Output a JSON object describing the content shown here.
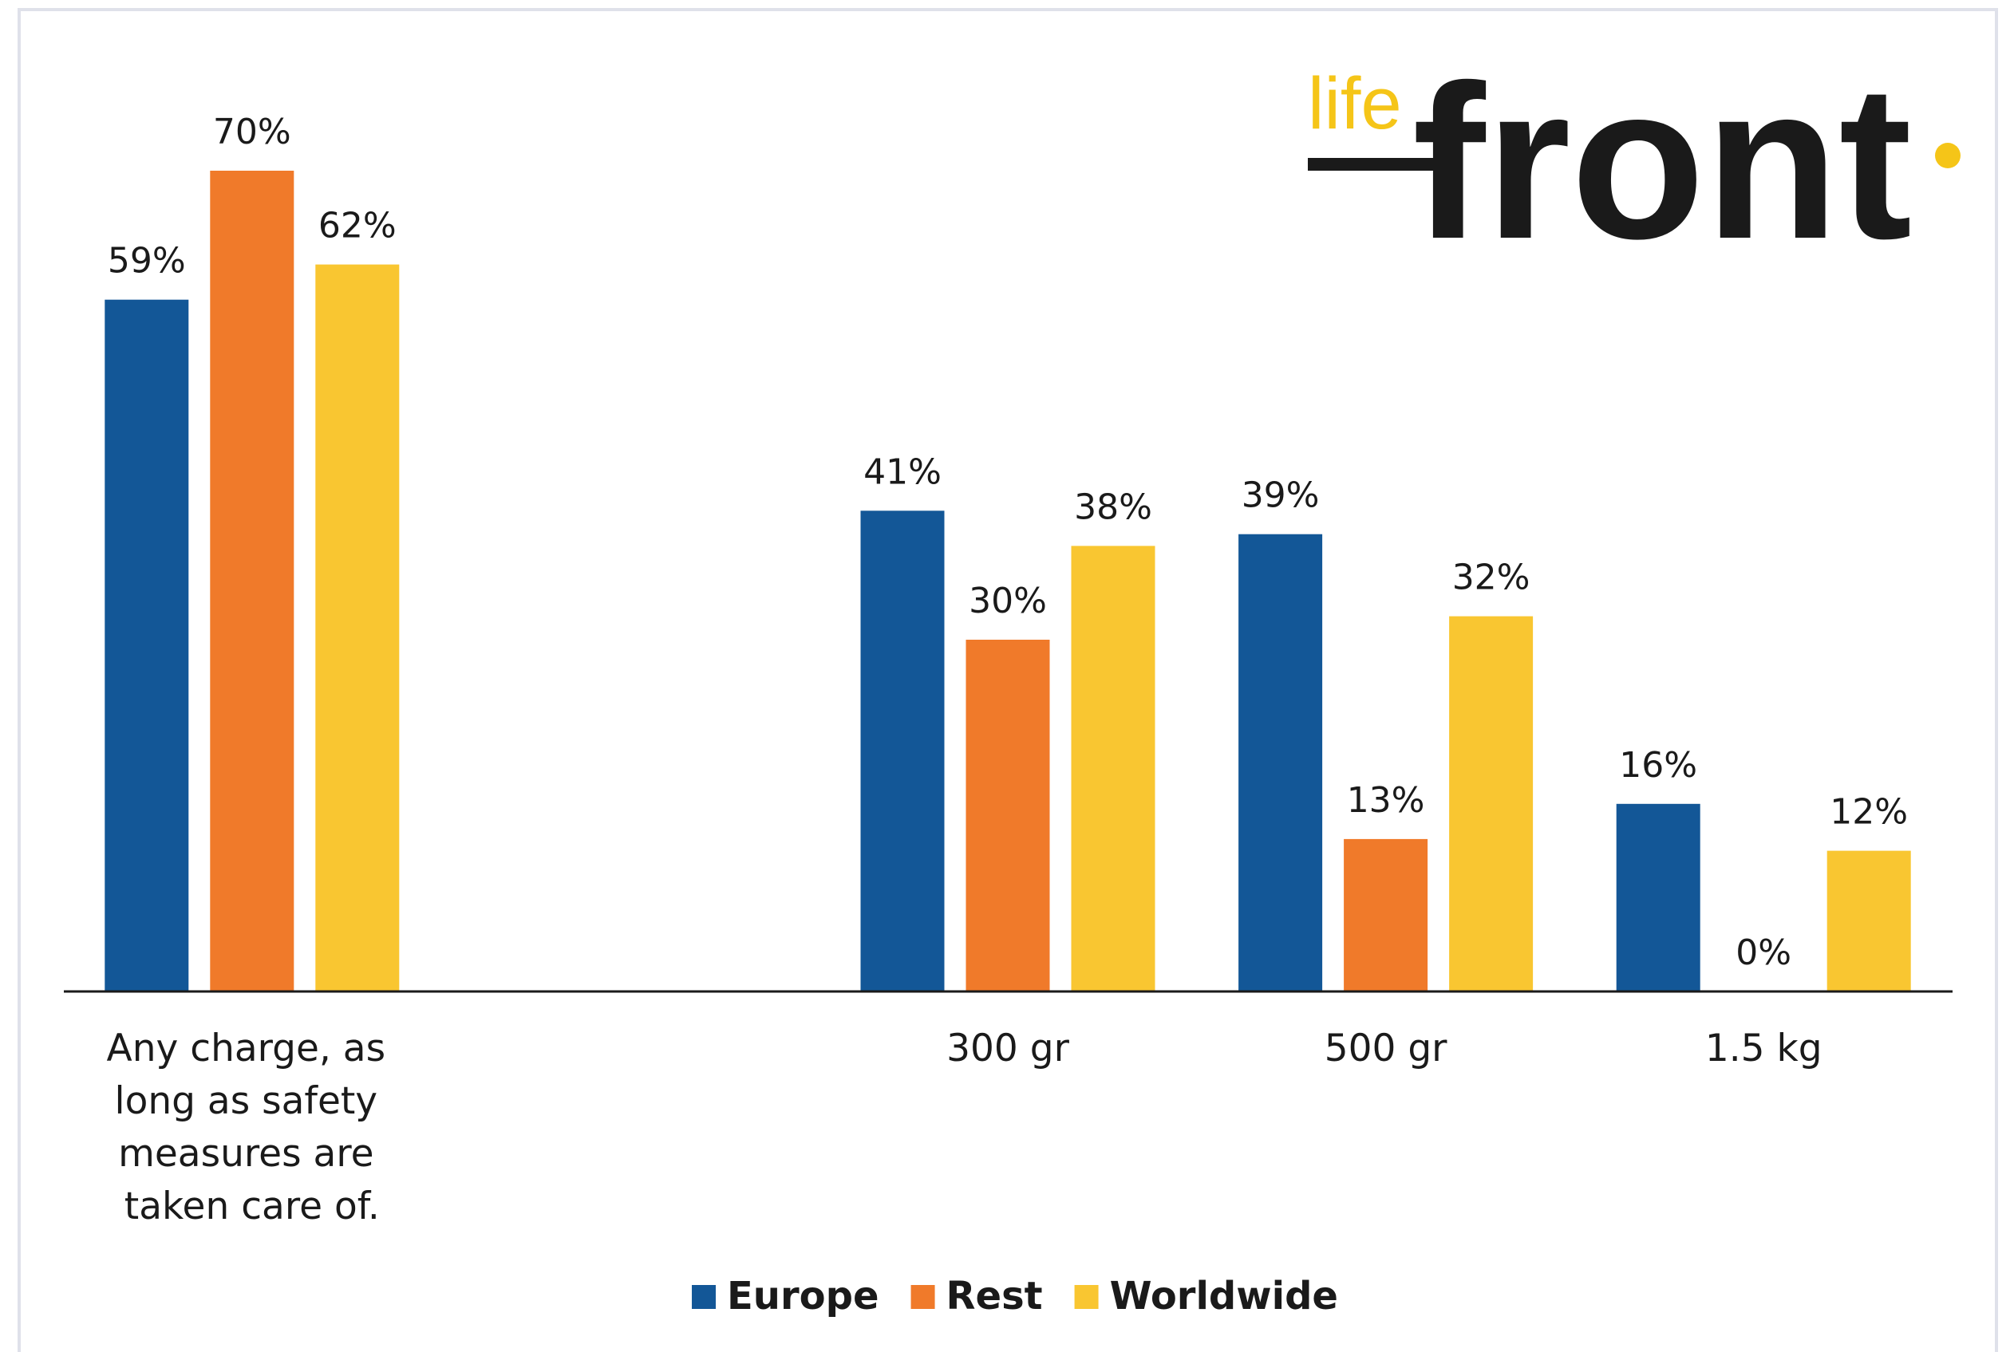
{
  "logo": {
    "top": "life",
    "main": "front"
  },
  "chart_data": {
    "type": "bar",
    "categories": [
      "Any charge, as long as safety measures are taken care of.",
      null,
      "300 gr",
      "500 gr",
      "1.5 kg"
    ],
    "series": [
      {
        "name": "Europe",
        "color": "#135797",
        "values": [
          59,
          null,
          41,
          39,
          16
        ],
        "value_labels": [
          "59%",
          null,
          "41%",
          "39%",
          "16%"
        ]
      },
      {
        "name": "Rest",
        "color": "#f07a2a",
        "values": [
          70,
          null,
          30,
          13,
          0
        ],
        "value_labels": [
          "70%",
          null,
          "30%",
          "13%",
          "0%"
        ]
      },
      {
        "name": "Worldwide",
        "color": "#f9c631",
        "values": [
          62,
          null,
          38,
          32,
          12
        ],
        "value_labels": [
          "62%",
          null,
          "38%",
          "32%",
          "12%"
        ]
      }
    ],
    "ylim": [
      0,
      80
    ],
    "legend": "bottom"
  }
}
